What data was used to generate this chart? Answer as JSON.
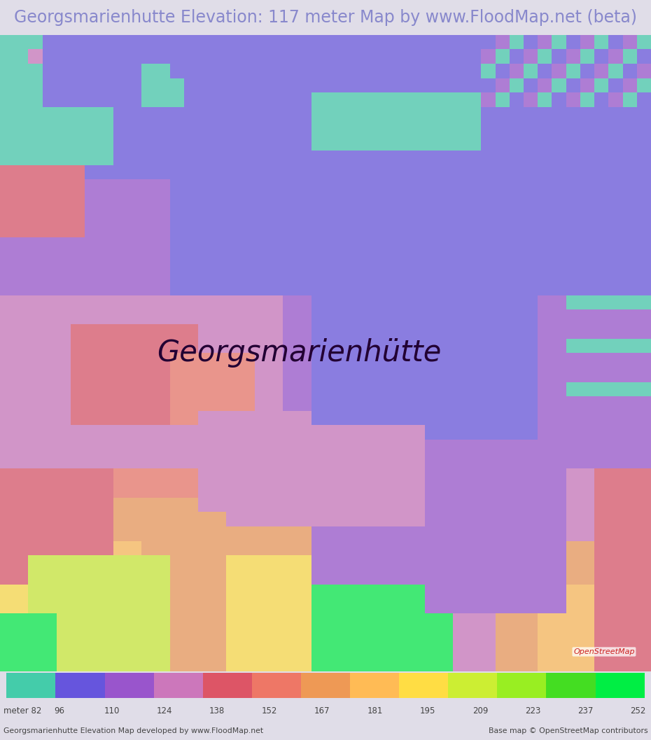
{
  "title": "Georgsmarienhutte Elevation: 117 meter Map by www.FloodMap.net (beta)",
  "title_color": "#8888cc",
  "title_bg": "#e0dde8",
  "title_fontsize": 17,
  "map_bg": "#c8b8d0",
  "colorbar_values": [
    82,
    96,
    110,
    124,
    138,
    152,
    167,
    181,
    195,
    209,
    223,
    237,
    252
  ],
  "colorbar_colors": [
    "#44ccaa",
    "#6655dd",
    "#9955cc",
    "#cc77bb",
    "#dd5566",
    "#ee7766",
    "#ee9955",
    "#ffbb55",
    "#ffdd44",
    "#ccee33",
    "#99ee22",
    "#44dd22",
    "#00ee44"
  ],
  "footer_left": "Georgsmarienhutte Elevation Map developed by www.FloodMap.net",
  "footer_right": "Base map © OpenStreetMap contributors",
  "footer_color": "#444444",
  "label_meter": "meter",
  "city_name": "Georgsmarienhütte",
  "city_name_color": "#220033",
  "city_name_fontsize": 30,
  "osm_color": "#cc2222",
  "osm_text": "OpenStreetMap"
}
